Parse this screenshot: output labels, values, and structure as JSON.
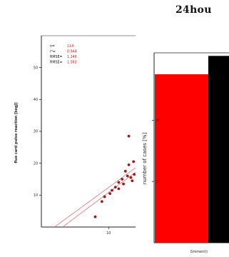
{
  "page": {
    "title": "24hou"
  },
  "chart_data": [
    {
      "type": "scatter",
      "title": "",
      "xlabel": "",
      "ylabel": "fluo card pulse reaction [kegJ]",
      "xlim": [
        0,
        14
      ],
      "ylim": [
        0,
        60
      ],
      "x_ticks": [
        "10"
      ],
      "y_ticks": [
        "10",
        "20",
        "30",
        "40",
        "50"
      ],
      "stats": [
        {
          "label": "n=",
          "value": "114"
        },
        {
          "label": "r²=",
          "value": "0.944"
        },
        {
          "label": "RMSE=",
          "value": "1.246"
        },
        {
          "label": "RMSE=",
          "value": "1.562"
        }
      ],
      "points": [
        {
          "x": 8.0,
          "y": 3.2
        },
        {
          "x": 9.0,
          "y": 8.0
        },
        {
          "x": 9.4,
          "y": 9.5
        },
        {
          "x": 10.2,
          "y": 10.5
        },
        {
          "x": 10.5,
          "y": 11.5
        },
        {
          "x": 11.0,
          "y": 12.5
        },
        {
          "x": 11.5,
          "y": 14.0
        },
        {
          "x": 11.5,
          "y": 12.0
        },
        {
          "x": 12.0,
          "y": 15.0
        },
        {
          "x": 12.2,
          "y": 13.5
        },
        {
          "x": 12.5,
          "y": 17.5
        },
        {
          "x": 12.8,
          "y": 16.0
        },
        {
          "x": 13.0,
          "y": 19.5
        },
        {
          "x": 13.3,
          "y": 15.5
        },
        {
          "x": 13.5,
          "y": 14.5
        },
        {
          "x": 13.7,
          "y": 20.5
        },
        {
          "x": 13.0,
          "y": 28.5
        },
        {
          "x": 13.8,
          "y": 16.5
        }
      ],
      "fit_lines": [
        {
          "x": [
            0,
            14
          ],
          "y": [
            -5.0,
            17.2
          ]
        },
        {
          "x": [
            0,
            14
          ],
          "y": [
            -3.0,
            18.6
          ]
        }
      ],
      "colors": {
        "points": "#a01818",
        "fit": "#e07070"
      }
    },
    {
      "type": "bar",
      "title": "",
      "xlabel": "",
      "ylabel": "number of cases [%]",
      "ylim": [
        0,
        31
      ],
      "y_ticks": [
        "10",
        "20"
      ],
      "categories": [
        "Gmmen(l)"
      ],
      "series": [
        {
          "values": [
            27.5
          ],
          "color": "#ff0000"
        },
        {
          "values": [
            30.5
          ],
          "color": "#000000"
        }
      ]
    }
  ]
}
